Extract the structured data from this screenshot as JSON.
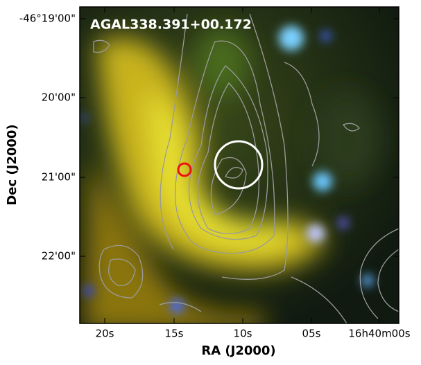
{
  "image_label": "AGAL338.391+00.172",
  "x_axis": {
    "title": "RA (J2000)",
    "ticks": [
      "20s",
      "15s",
      "10s",
      "05s",
      "16h40m00s"
    ]
  },
  "y_axis": {
    "title": "Dec (J2000)",
    "ticks": [
      "-46°19'00\"",
      "20'00\"",
      "21'00\"",
      "22'00\""
    ]
  }
}
